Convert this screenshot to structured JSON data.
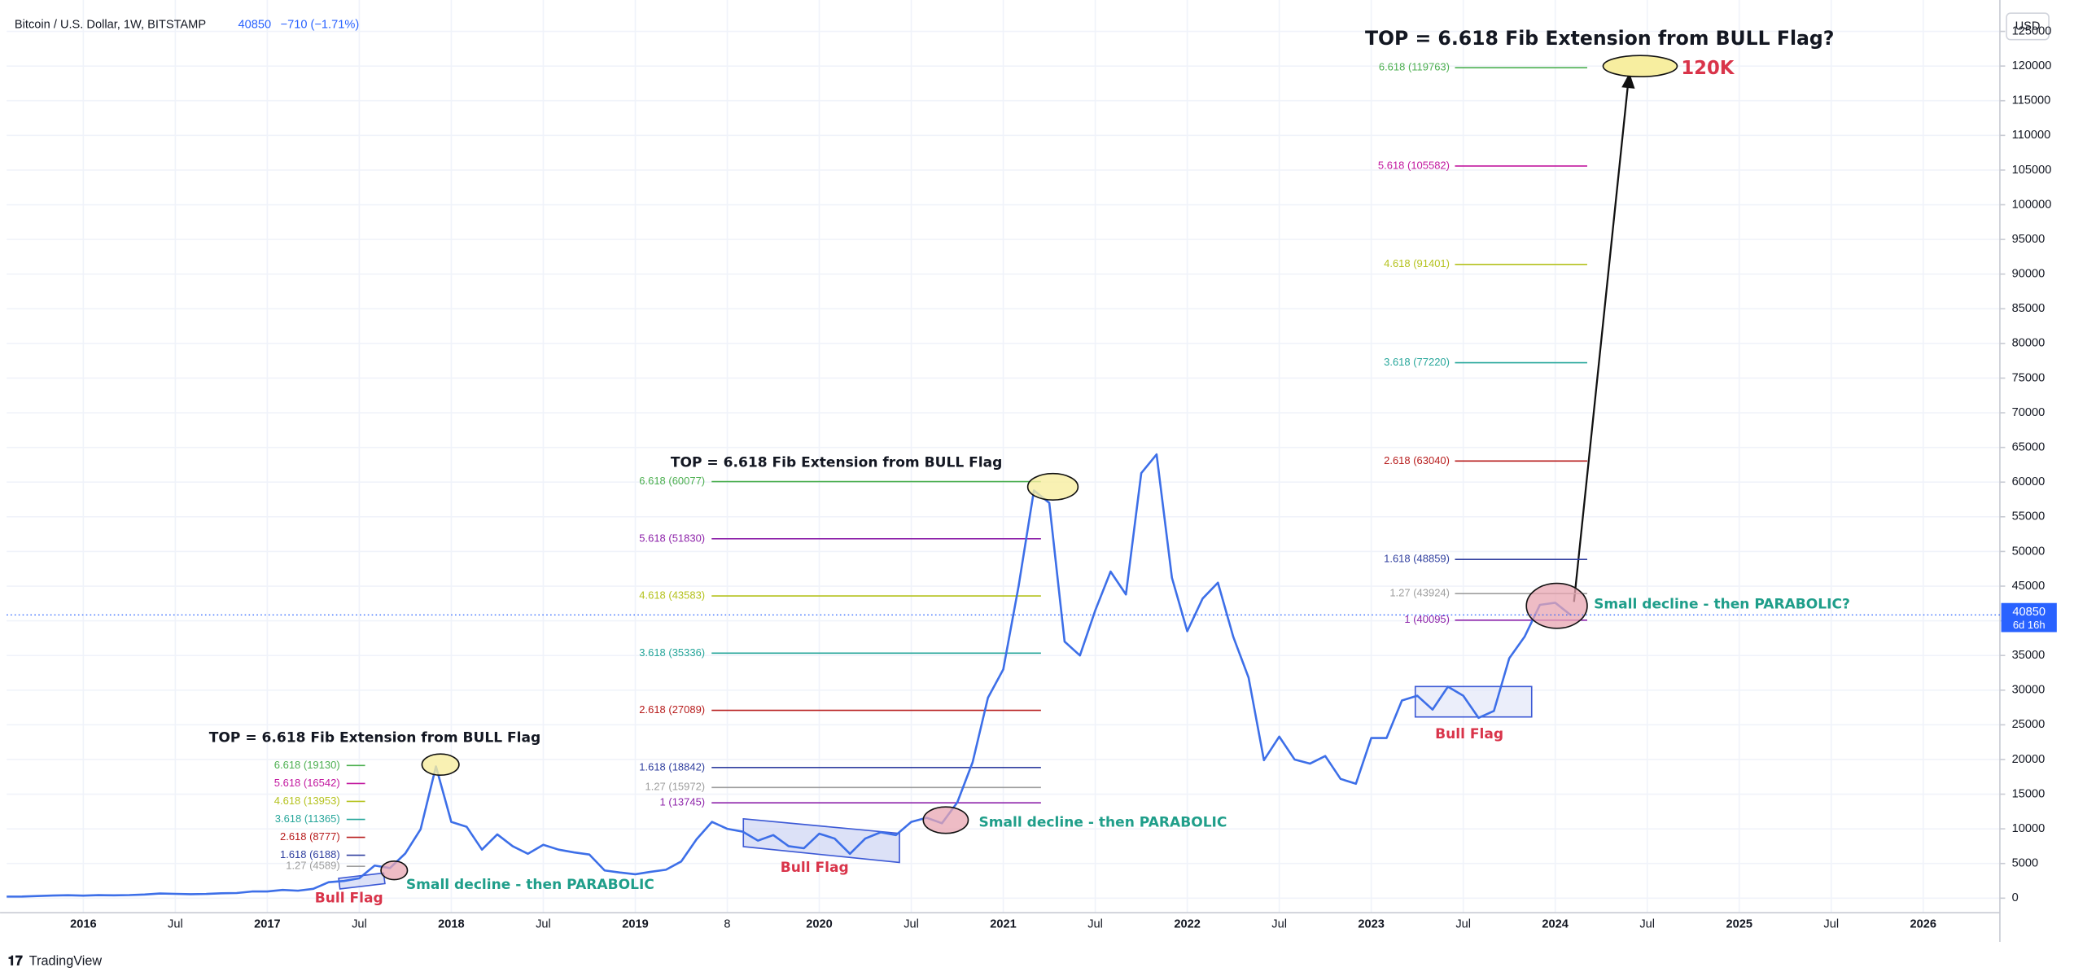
{
  "header": {
    "symbol": "Bitcoin / U.S. Dollar, 1W, BITSTAMP",
    "change": "−710 (−1.71%)",
    "currency": "USD",
    "countdown": "6d 16h",
    "brand": "TradingView"
  },
  "chart_data": {
    "type": "line",
    "color": "#3d6fe8",
    "last": 40850,
    "grid": true,
    "xlim": [
      "2015-08",
      "2026-06"
    ],
    "ylim": [
      -2100,
      128000
    ],
    "yticks": [
      0,
      5000,
      10000,
      15000,
      20000,
      25000,
      30000,
      35000,
      40000,
      45000,
      50000,
      55000,
      60000,
      65000,
      70000,
      75000,
      80000,
      85000,
      90000,
      95000,
      100000,
      105000,
      110000,
      115000,
      120000,
      125000
    ],
    "xticks": [
      {
        "value": "2016-01",
        "label": "2016"
      },
      {
        "value": "2016-07",
        "label": "Jul"
      },
      {
        "value": "2017-01",
        "label": "2017"
      },
      {
        "value": "2017-07",
        "label": "Jul"
      },
      {
        "value": "2018-01",
        "label": "2018"
      },
      {
        "value": "2018-07",
        "label": "Jul"
      },
      {
        "value": "2019-01",
        "label": "2019"
      },
      {
        "value": "2019-07",
        "label": "8"
      },
      {
        "value": "2020-01",
        "label": "2020"
      },
      {
        "value": "2020-07",
        "label": "Jul"
      },
      {
        "value": "2021-01",
        "label": "2021"
      },
      {
        "value": "2021-07",
        "label": "Jul"
      },
      {
        "value": "2022-01",
        "label": "2022"
      },
      {
        "value": "2022-07",
        "label": "Jul"
      },
      {
        "value": "2023-01",
        "label": "2023"
      },
      {
        "value": "2023-07",
        "label": "Jul"
      },
      {
        "value": "2024-01",
        "label": "2024"
      },
      {
        "value": "2024-07",
        "label": "Jul"
      },
      {
        "value": "2025-01",
        "label": "2025"
      },
      {
        "value": "2025-07",
        "label": "Jul"
      },
      {
        "value": "2026-01",
        "label": "2026"
      }
    ],
    "x": [
      "2015-08",
      "2015-09",
      "2015-10",
      "2015-11",
      "2015-12",
      "2016-01",
      "2016-02",
      "2016-03",
      "2016-04",
      "2016-05",
      "2016-06",
      "2016-07",
      "2016-08",
      "2016-09",
      "2016-10",
      "2016-11",
      "2016-12",
      "2017-01",
      "2017-02",
      "2017-03",
      "2017-04",
      "2017-05",
      "2017-06",
      "2017-07",
      "2017-08",
      "2017-09",
      "2017-10",
      "2017-11",
      "2017-12",
      "2018-01",
      "2018-02",
      "2018-03",
      "2018-04",
      "2018-05",
      "2018-06",
      "2018-07",
      "2018-08",
      "2018-09",
      "2018-10",
      "2018-11",
      "2018-12",
      "2019-01",
      "2019-02",
      "2019-03",
      "2019-04",
      "2019-05",
      "2019-06",
      "2019-07",
      "2019-08",
      "2019-09",
      "2019-10",
      "2019-11",
      "2019-12",
      "2020-01",
      "2020-02",
      "2020-03",
      "2020-04",
      "2020-05",
      "2020-06",
      "2020-07",
      "2020-08",
      "2020-09",
      "2020-10",
      "2020-11",
      "2020-12",
      "2021-01",
      "2021-02",
      "2021-03",
      "2021-04",
      "2021-05",
      "2021-06",
      "2021-07",
      "2021-08",
      "2021-09",
      "2021-10",
      "2021-11",
      "2021-12",
      "2022-01",
      "2022-02",
      "2022-03",
      "2022-04",
      "2022-05",
      "2022-06",
      "2022-07",
      "2022-08",
      "2022-09",
      "2022-10",
      "2022-11",
      "2022-12",
      "2023-01",
      "2023-02",
      "2023-03",
      "2023-04",
      "2023-05",
      "2023-06",
      "2023-07",
      "2023-08",
      "2023-09",
      "2023-10",
      "2023-11",
      "2023-12",
      "2024-01",
      "2024-02"
    ],
    "values": [
      230,
      236,
      314,
      377,
      430,
      368,
      437,
      416,
      448,
      531,
      673,
      624,
      575,
      609,
      700,
      742,
      963,
      970,
      1190,
      1080,
      1350,
      2300,
      2480,
      2870,
      4700,
      4340,
      6450,
      9950,
      19000,
      11000,
      10300,
      7000,
      9200,
      7500,
      6400,
      7700,
      7000,
      6600,
      6300,
      4000,
      3700,
      3450,
      3800,
      4100,
      5300,
      8500,
      11000,
      10000,
      9600,
      8300,
      9100,
      7500,
      7200,
      9300,
      8600,
      6400,
      8600,
      9500,
      9100,
      11000,
      11600,
      10800,
      13800,
      19600,
      28900,
      33000,
      45000,
      58800,
      57000,
      37000,
      35000,
      41500,
      47100,
      43800,
      61300,
      64000,
      46200,
      38500,
      43200,
      45500,
      37700,
      31800,
      19900,
      23300,
      20000,
      19400,
      20500,
      17200,
      16500,
      23100,
      23100,
      28500,
      29200,
      27200,
      30500,
      29200,
      26000,
      27000,
      34600,
      37700,
      42300,
      42600,
      40850
    ],
    "fib_sets": [
      {
        "levels": [
          {
            "value": 19130,
            "label": "6.618 (19130)",
            "color": "#4caf50"
          },
          {
            "value": 16542,
            "label": "5.618 (16542)",
            "color": "#c2189f"
          },
          {
            "value": 13953,
            "label": "4.618 (13953)",
            "color": "#b5c21e"
          },
          {
            "value": 11365,
            "label": "3.618 (11365)",
            "color": "#26a69a"
          },
          {
            "value": 8777,
            "label": "2.618 (8777)",
            "color": "#b71c1c"
          },
          {
            "value": 6188,
            "label": "1.618 (6188)",
            "color": "#303f9f"
          },
          {
            "value": 4589,
            "label": "1.27 (4589)",
            "color": "#9e9e9e"
          }
        ]
      },
      {
        "levels": [
          {
            "value": 60077,
            "label": "6.618 (60077)",
            "color": "#4caf50"
          },
          {
            "value": 51830,
            "label": "5.618 (51830)",
            "color": "#8e24aa"
          },
          {
            "value": 43583,
            "label": "4.618 (43583)",
            "color": "#b5c21e"
          },
          {
            "value": 35336,
            "label": "3.618 (35336)",
            "color": "#26a69a"
          },
          {
            "value": 27089,
            "label": "2.618 (27089)",
            "color": "#b71c1c"
          },
          {
            "value": 18842,
            "label": "1.618 (18842)",
            "color": "#303f9f"
          },
          {
            "value": 15972,
            "label": "1.27 (15972)",
            "color": "#9e9e9e"
          },
          {
            "value": 13745,
            "label": "1 (13745)",
            "color": "#8e24aa"
          }
        ]
      },
      {
        "levels": [
          {
            "value": 119763,
            "label": "6.618 (119763)",
            "color": "#4caf50"
          },
          {
            "value": 105582,
            "label": "5.618 (105582)",
            "color": "#c2189f"
          },
          {
            "value": 91401,
            "label": "4.618 (91401)",
            "color": "#b5c21e"
          },
          {
            "value": 77220,
            "label": "3.618 (77220)",
            "color": "#26a69a"
          },
          {
            "value": 63040,
            "label": "2.618 (63040)",
            "color": "#b71c1c"
          },
          {
            "value": 48859,
            "label": "1.618 (48859)",
            "color": "#303f9f"
          },
          {
            "value": 43924,
            "label": "1.27 (43924)",
            "color": "#9e9e9e"
          },
          {
            "value": 40095,
            "label": "1 (40095)",
            "color": "#8e24aa"
          }
        ]
      }
    ],
    "annotations": [
      "TOP = 6.618 Fib Extension from BULL Flag",
      "TOP = 6.618 Fib Extension from BULL Flag",
      "TOP = 6.618 Fib Extension from BULL Flag?",
      "120K",
      "Bull Flag",
      "Bull Flag",
      "Bull Flag",
      "Small decline - then PARABOLIC",
      "Small decline - then PARABOLIC",
      "Small decline - then PARABOLIC?"
    ]
  }
}
